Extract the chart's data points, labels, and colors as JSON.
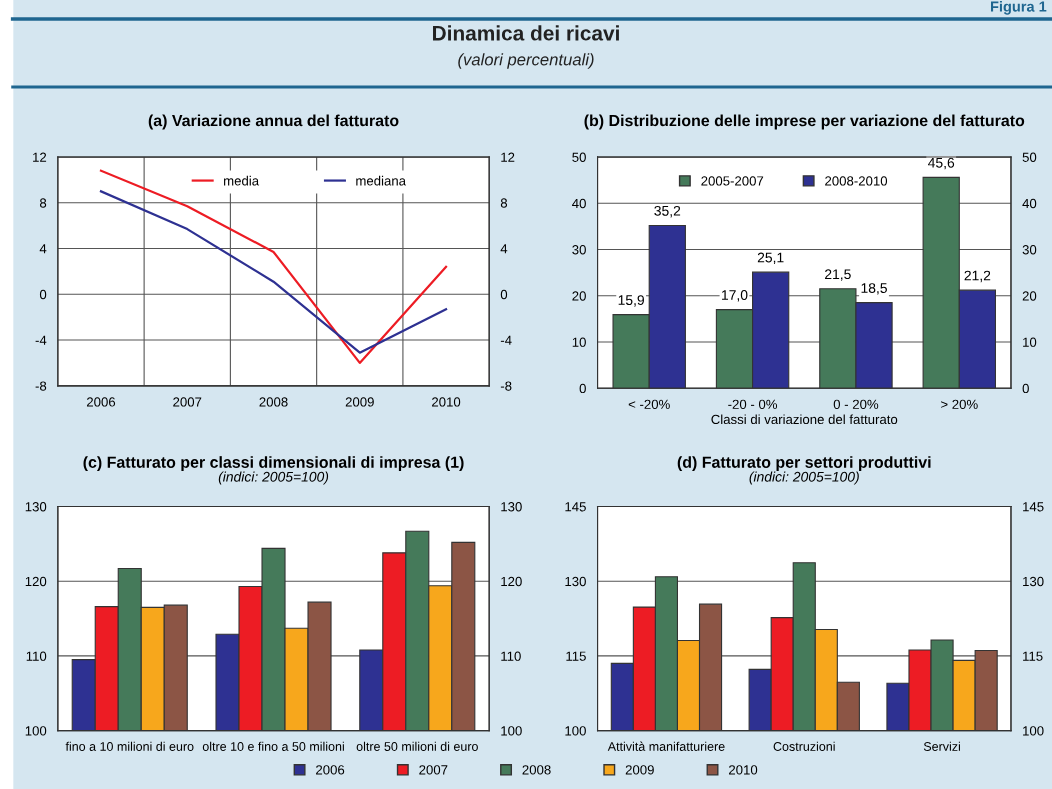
{
  "chart_data": [
    {
      "type": "other",
      "title": "Dinamica dei ricavi",
      "subtitle": "(valori percentuali)",
      "annotations": [
        "Figura 1"
      ]
    },
    {
      "type": "line",
      "title": "(a) Variazione annua del fatturato",
      "categories": [
        "2006",
        "2007",
        "2008",
        "2009",
        "2010"
      ],
      "series": [
        {
          "name": "media",
          "color": "#ed1c24",
          "values": [
            10.8,
            7.7,
            3.7,
            -6.0,
            2.4
          ]
        },
        {
          "name": "mediana",
          "color": "#2e3192",
          "values": [
            9.0,
            5.7,
            1.1,
            -5.1,
            -1.3
          ]
        }
      ],
      "ylim": [
        -8,
        12
      ],
      "yticks": [
        -8,
        -4,
        0,
        4,
        8,
        12
      ],
      "y2lim": [
        -8,
        12
      ],
      "y2ticks": [
        -8,
        -4,
        0,
        4,
        8,
        12
      ],
      "grid": true,
      "legend": "top",
      "marker": "none",
      "line_style": "solid"
    },
    {
      "type": "bar",
      "title": "(b) Distribuzione delle imprese per variazione del fatturato",
      "xlabel": "Classi di variazione del fatturato",
      "categories": [
        "< -20%",
        "-20 - 0%",
        "0 - 20%",
        "> 20%"
      ],
      "series": [
        {
          "name": "2005-2007",
          "color": "#457a5a",
          "values": [
            15.9,
            17.0,
            21.5,
            45.6
          ],
          "value_labels": [
            "15,9",
            "17,0",
            "21,5",
            "45,6"
          ]
        },
        {
          "name": "2008-2010",
          "color": "#2e3192",
          "values": [
            35.2,
            25.1,
            18.5,
            21.2
          ],
          "value_labels": [
            "35,2",
            "25,1",
            "18,5",
            "21,2"
          ]
        }
      ],
      "ylim": [
        0,
        50
      ],
      "yticks": [
        0,
        10,
        20,
        30,
        40,
        50
      ],
      "y2lim": [
        0,
        50
      ],
      "y2ticks": [
        0,
        10,
        20,
        30,
        40,
        50
      ],
      "grid": "y",
      "legend": "top"
    },
    {
      "type": "bar",
      "title": "(c) Fatturato per classi dimensionali di impresa (1)",
      "subtitle": "(indici: 2005=100)",
      "categories": [
        "fino a 10 milioni di euro",
        "oltre 10 e fino a 50 milioni",
        "oltre 50 milioni di euro"
      ],
      "series": [
        {
          "name": "2006",
          "color": "#2e3192",
          "values": [
            109.5,
            112.9,
            110.8
          ]
        },
        {
          "name": "2007",
          "color": "#ed1c24",
          "values": [
            116.6,
            119.3,
            123.8
          ]
        },
        {
          "name": "2008",
          "color": "#457a5a",
          "values": [
            121.7,
            124.4,
            126.7
          ]
        },
        {
          "name": "2009",
          "color": "#f7a71c",
          "values": [
            116.5,
            113.7,
            119.4
          ]
        },
        {
          "name": "2010",
          "color": "#8c5545",
          "values": [
            116.8,
            117.2,
            125.2
          ]
        }
      ],
      "ylim": [
        100,
        130
      ],
      "yticks": [
        100,
        110,
        120,
        130
      ],
      "y2lim": [
        100,
        130
      ],
      "y2ticks": [
        100,
        110,
        120,
        130
      ],
      "grid": "y",
      "legend": "bottom"
    },
    {
      "type": "bar",
      "title": "(d) Fatturato per settori produttivi",
      "subtitle": "(indici: 2005=100)",
      "categories": [
        "Attività manifatturiere",
        "Costruzioni",
        "Servizi"
      ],
      "series": [
        {
          "name": "2006",
          "color": "#2e3192",
          "values": [
            113.5,
            112.3,
            109.5
          ]
        },
        {
          "name": "2007",
          "color": "#ed1c24",
          "values": [
            124.8,
            122.7,
            116.2
          ]
        },
        {
          "name": "2008",
          "color": "#457a5a",
          "values": [
            130.9,
            133.7,
            118.2
          ]
        },
        {
          "name": "2009",
          "color": "#f7a71c",
          "values": [
            118.1,
            120.3,
            114.1
          ]
        },
        {
          "name": "2010",
          "color": "#8c5545",
          "values": [
            125.4,
            109.7,
            116.1
          ]
        }
      ],
      "ylim": [
        100,
        145
      ],
      "yticks": [
        100,
        115,
        130,
        145
      ],
      "y2lim": [
        100,
        145
      ],
      "y2ticks": [
        100,
        115,
        130,
        145
      ],
      "grid": "y",
      "legend": "bottom"
    }
  ]
}
